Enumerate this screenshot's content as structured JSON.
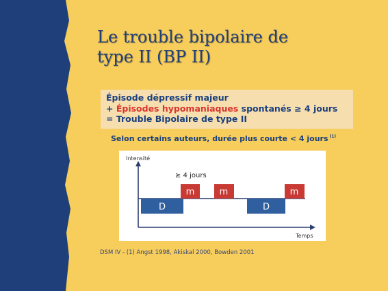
{
  "slide": {
    "title_line1": "Le trouble bipolaire de",
    "title_line2": "type II (BP II)"
  },
  "definition": {
    "line1": "Épisode dépressif majeur",
    "line2_prefix": "+ ",
    "line2_highlight": "Épisodes hypomaniaques",
    "line2_suffix": " spontanés ≥ 4 jours",
    "line3": "= Trouble Bipolaire de type II"
  },
  "note": {
    "text": "Selon certains auteurs, durée plus courte < 4 jours",
    "footnote_marker": "(1)"
  },
  "diagram": {
    "y_axis_label": "Intensité",
    "x_axis_label": "Temps",
    "duration_label": "≥ 4 jours",
    "episode_labels": [
      "m",
      "m",
      "D",
      "D",
      "m"
    ]
  },
  "reference": "DSM IV - (1) Angst 1998, Akiskal 2000, Bowden 2001",
  "colors": {
    "background": "#f7cd5b",
    "stripe": "#1f3f7b",
    "title": "#20407a",
    "box_background": "#f6deaf",
    "text_blue": "#1a3f7d",
    "highlight_red": "#d8352d",
    "hypomania_bar": "#c93a35",
    "depression_bar": "#2f5f9f"
  }
}
